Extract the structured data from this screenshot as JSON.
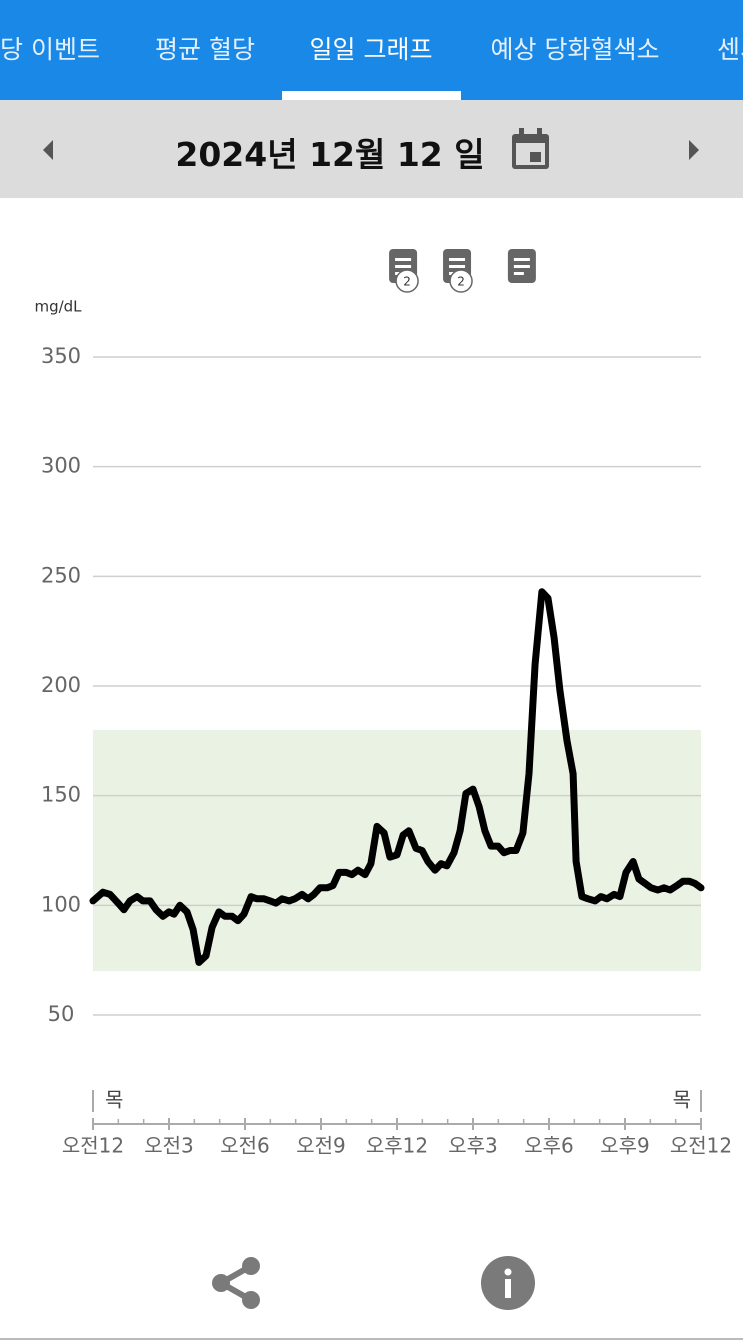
{
  "tabs": [
    "당 이벤트",
    "평균 혈당",
    "일일 그래프",
    "예상 당화혈색소",
    "센서"
  ],
  "selected_tab": 2,
  "date": "2024년 12월 12 일",
  "chart_data": {
    "type": "line",
    "y_label": "mg/dL",
    "x": [
      0,
      0.39,
      0.67,
      0.99,
      1.22,
      1.46,
      1.74,
      1.97,
      2.25,
      2.49,
      2.76,
      3.0,
      3.2,
      3.43,
      3.71,
      3.95,
      4.18,
      4.46,
      4.7,
      4.97,
      5.21,
      5.49,
      5.72,
      5.96,
      6.24,
      6.47,
      6.75,
      6.99,
      7.22,
      7.46,
      7.74,
      7.97,
      8.25,
      8.49,
      8.72,
      8.96,
      9.24,
      9.47,
      9.71,
      9.99,
      10.22,
      10.46,
      10.74,
      10.97,
      11.21,
      11.49,
      11.72,
      12.0,
      12.24,
      12.47,
      12.75,
      12.99,
      13.22,
      13.5,
      13.74,
      13.97,
      14.25,
      14.49,
      14.72,
      15.0,
      15.24,
      15.47,
      15.71,
      15.99,
      16.22,
      16.46,
      16.7,
      16.97,
      17.21,
      17.45,
      17.72,
      17.96,
      18.2,
      18.43,
      18.71,
      18.95,
      19.07,
      19.3,
      19.54,
      19.82,
      20.05,
      20.29,
      20.57,
      20.8,
      21.04,
      21.32,
      21.55,
      21.79,
      22.03,
      22.3,
      22.54,
      22.78,
      23.05,
      23.29,
      23.53,
      23.76,
      24.0
    ],
    "values": [
      102,
      106,
      105,
      101,
      98,
      102,
      104,
      102,
      102,
      98,
      95,
      97,
      96,
      100,
      97,
      89,
      74,
      77,
      90,
      97,
      95,
      95,
      93,
      96,
      104,
      103,
      103,
      102,
      101,
      103,
      102,
      103,
      105,
      103,
      105,
      108,
      108,
      109,
      115,
      115,
      114,
      116,
      114,
      119,
      136,
      133,
      122,
      123,
      132,
      134,
      126,
      125,
      120,
      116,
      119,
      118,
      124,
      134,
      151,
      153,
      145,
      134,
      127,
      127,
      124,
      125,
      125,
      133,
      160,
      210,
      243,
      240,
      222,
      198,
      175,
      160,
      120,
      104,
      103,
      102,
      104,
      103,
      105,
      104,
      115,
      120,
      112,
      110,
      108,
      107,
      108,
      107,
      109,
      111,
      111,
      110,
      108
    ],
    "color": "#000000",
    "target_range": [
      70,
      180
    ],
    "target_color": "#eaf3e3",
    "xlim": [
      0,
      24
    ],
    "xticks": [
      {
        "value": 0,
        "label": "오전12"
      },
      {
        "value": 3,
        "label": "오전3"
      },
      {
        "value": 6,
        "label": "오전6"
      },
      {
        "value": 9,
        "label": "오전9"
      },
      {
        "value": 12,
        "label": "오후12"
      },
      {
        "value": 15,
        "label": "오후3"
      },
      {
        "value": 18,
        "label": "오후6"
      },
      {
        "value": 21,
        "label": "오후9"
      },
      {
        "value": 24,
        "label": "오전12"
      }
    ],
    "minor_xticks": [
      1,
      2,
      4,
      5,
      7,
      8,
      10,
      11,
      13,
      14,
      16,
      17,
      19,
      20,
      22,
      23
    ],
    "day_labels": [
      "목",
      "목"
    ],
    "ylim": [
      50,
      350
    ],
    "yticks": [
      50,
      100,
      150,
      200,
      250,
      300,
      350
    ],
    "grid": true,
    "note_markers": [
      {
        "x": 12.24,
        "count": "2"
      },
      {
        "x": 14.37,
        "count": "2"
      },
      {
        "x": 16.93
      }
    ]
  }
}
